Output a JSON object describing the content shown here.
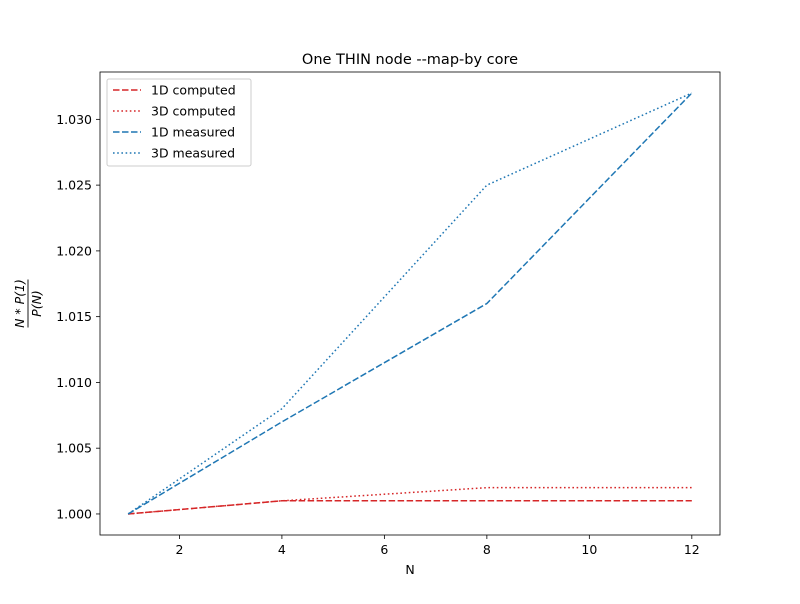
{
  "chart_data": {
    "type": "line",
    "title": "One THIN node --map-by core",
    "xlabel": "N",
    "ylabel": {
      "numerator": "N * P(1)",
      "denominator": "P(N)"
    },
    "x": [
      1,
      4,
      8,
      12
    ],
    "xlim": [
      0.45,
      12.55
    ],
    "ylim": [
      0.9984,
      1.0336
    ],
    "xticks": [
      2,
      4,
      6,
      8,
      10,
      12
    ],
    "xtick_labels": [
      "2",
      "4",
      "6",
      "8",
      "10",
      "12"
    ],
    "yticks": [
      1.0,
      1.005,
      1.01,
      1.015,
      1.02,
      1.025,
      1.03
    ],
    "ytick_labels": [
      "1.000",
      "1.005",
      "1.010",
      "1.015",
      "1.020",
      "1.025",
      "1.030"
    ],
    "grid": false,
    "legend_position": "upper-left",
    "series": [
      {
        "name": "1D computed",
        "color": "#d62728",
        "style": "dashed",
        "values": [
          1.0,
          1.001,
          1.001,
          1.001
        ]
      },
      {
        "name": "3D computed",
        "color": "#d62728",
        "style": "dotted",
        "values": [
          1.0,
          1.001,
          1.002,
          1.002
        ]
      },
      {
        "name": "1D measured",
        "color": "#1f77b4",
        "style": "dashed",
        "values": [
          1.0,
          1.007,
          1.016,
          1.032
        ]
      },
      {
        "name": "3D measured",
        "color": "#1f77b4",
        "style": "dotted",
        "values": [
          1.0,
          1.008,
          1.025,
          1.032
        ]
      }
    ]
  }
}
